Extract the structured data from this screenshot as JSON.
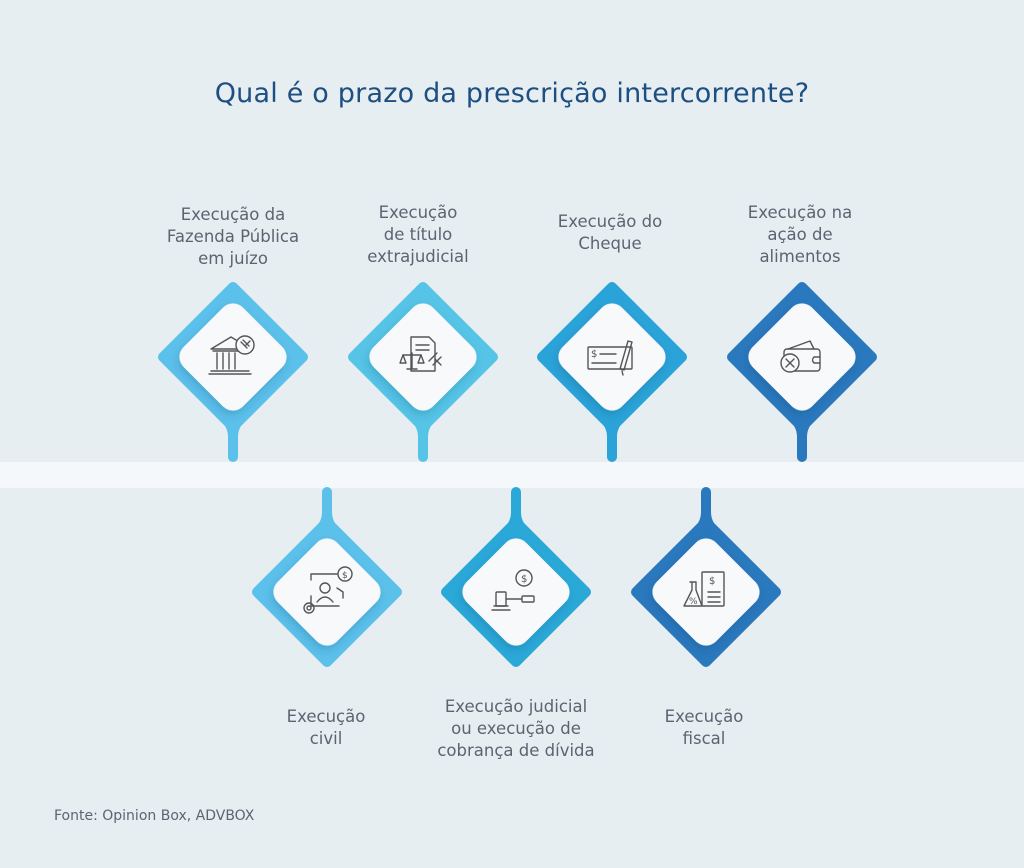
{
  "title": "Qual é o prazo da prescrição intercorrente?",
  "source": "Fonte: Opinion Box, ADVBOX",
  "top_items": [
    {
      "label": "Execução da\nFazenda Pública\nem juízo",
      "icon": "government-building-gavel-icon",
      "color": "#5bc0ea"
    },
    {
      "label": "Execução\nde título\nextrajudicial",
      "icon": "document-scales-gavel-icon",
      "color": "#55c4e6"
    },
    {
      "label": "Execução do\nCheque",
      "icon": "cheque-pen-icon",
      "color": "#2aa3d8"
    },
    {
      "label": "Execução na\nação de\nalimentos",
      "icon": "wallet-cancel-icon",
      "color": "#2a78bd"
    }
  ],
  "bottom_items": [
    {
      "label": "Execução\ncivil",
      "icon": "person-money-gear-icon",
      "color": "#5bc0ea"
    },
    {
      "label": "Execução judicial\nou execução de\ncobrança de dívida",
      "icon": "gavel-money-icon",
      "color": "#2aa8d8"
    },
    {
      "label": "Execução\nfiscal",
      "icon": "tax-document-flask-icon",
      "color": "#2a78bd"
    }
  ]
}
